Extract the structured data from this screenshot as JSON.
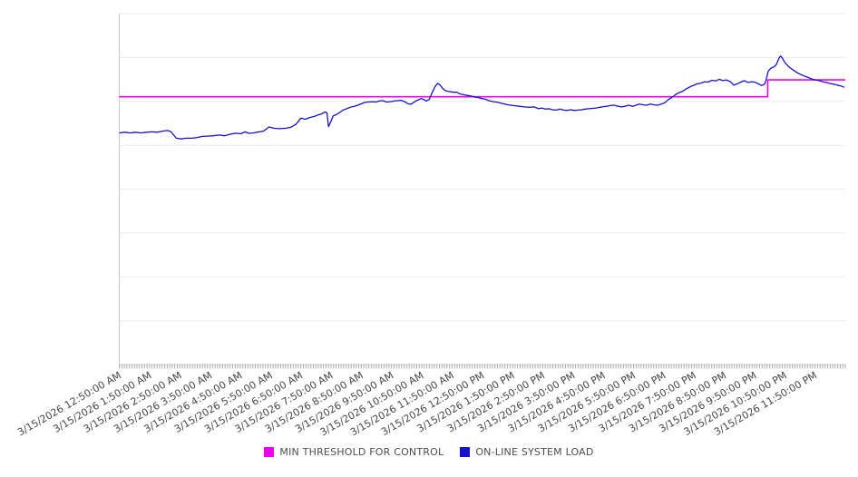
{
  "chart_data": {
    "type": "line",
    "title": "",
    "x_axis": {
      "kind": "time",
      "range_minutes": [
        0,
        1440
      ],
      "minor_tick_interval_minutes": 5,
      "label_interval_minutes": 60,
      "tick_labels": [
        "3/15/2026 12:50:00 AM",
        "3/15/2026 1:50:00 AM",
        "3/15/2026 2:50:00 AM",
        "3/15/2026 3:50:00 AM",
        "3/15/2026 4:50:00 AM",
        "3/15/2026 5:50:00 AM",
        "3/15/2026 6:50:00 AM",
        "3/15/2026 7:50:00 AM",
        "3/15/2026 8:50:00 AM",
        "3/15/2026 9:50:00 AM",
        "3/15/2026 10:50:00 AM",
        "3/15/2026 11:50:00 AM",
        "3/15/2026 12:50:00 PM",
        "3/15/2026 1:50:00 PM",
        "3/15/2026 2:50:00 PM",
        "3/15/2026 3:50:00 PM",
        "3/15/2026 4:50:00 PM",
        "3/15/2026 5:50:00 PM",
        "3/15/2026 6:50:00 PM",
        "3/15/2026 7:50:00 PM",
        "3/15/2026 8:50:00 PM",
        "3/15/2026 9:50:00 PM",
        "3/15/2026 10:50:00 PM",
        "3/15/2026 11:50:00 PM"
      ]
    },
    "y_axis": {
      "tick_labels": [],
      "note": "no visible y-axis labels; values are relative load units 0-100 estimated from gridlines",
      "range": [
        0,
        100
      ],
      "gridline_count": 9,
      "grid_on": true
    },
    "legend_position": "bottom",
    "series": [
      {
        "name": "MIN THRESHOLD FOR CONTROL",
        "color": "#ee00ee",
        "shape": "step",
        "points": [
          [
            0,
            76.3
          ],
          [
            1286,
            76.3
          ],
          [
            1286,
            81.1
          ],
          [
            1440,
            81.1
          ]
        ]
      },
      {
        "name": "ON-LINE SYSTEM LOAD",
        "color": "#1414cc",
        "shape": "line",
        "points": [
          [
            0,
            66.0
          ],
          [
            11,
            66.2
          ],
          [
            22,
            66.0
          ],
          [
            32,
            66.2
          ],
          [
            43,
            66.0
          ],
          [
            54,
            66.2
          ],
          [
            65,
            66.3
          ],
          [
            76,
            66.2
          ],
          [
            86,
            66.5
          ],
          [
            95,
            66.7
          ],
          [
            102,
            66.4
          ],
          [
            108,
            65.4
          ],
          [
            113,
            64.5
          ],
          [
            122,
            64.3
          ],
          [
            133,
            64.5
          ],
          [
            144,
            64.5
          ],
          [
            155,
            64.7
          ],
          [
            165,
            65.0
          ],
          [
            176,
            65.1
          ],
          [
            187,
            65.2
          ],
          [
            198,
            65.4
          ],
          [
            209,
            65.2
          ],
          [
            219,
            65.6
          ],
          [
            230,
            65.9
          ],
          [
            241,
            65.8
          ],
          [
            250,
            66.3
          ],
          [
            257,
            65.9
          ],
          [
            266,
            66.0
          ],
          [
            273,
            66.2
          ],
          [
            286,
            66.5
          ],
          [
            297,
            67.7
          ],
          [
            307,
            67.3
          ],
          [
            318,
            67.2
          ],
          [
            329,
            67.3
          ],
          [
            340,
            67.6
          ],
          [
            351,
            68.5
          ],
          [
            360,
            70.2
          ],
          [
            369,
            69.9
          ],
          [
            378,
            70.4
          ],
          [
            387,
            70.7
          ],
          [
            394,
            71.1
          ],
          [
            401,
            71.4
          ],
          [
            408,
            72.0
          ],
          [
            412,
            71.7
          ],
          [
            415,
            67.8
          ],
          [
            419,
            69.0
          ],
          [
            424,
            70.8
          ],
          [
            430,
            71.2
          ],
          [
            437,
            71.8
          ],
          [
            444,
            72.5
          ],
          [
            451,
            72.9
          ],
          [
            458,
            73.3
          ],
          [
            466,
            73.6
          ],
          [
            473,
            73.9
          ],
          [
            480,
            74.3
          ],
          [
            487,
            74.7
          ],
          [
            494,
            74.8
          ],
          [
            502,
            74.9
          ],
          [
            509,
            74.8
          ],
          [
            516,
            75.1
          ],
          [
            523,
            75.2
          ],
          [
            530,
            74.8
          ],
          [
            538,
            74.9
          ],
          [
            545,
            75.1
          ],
          [
            552,
            75.2
          ],
          [
            559,
            75.3
          ],
          [
            566,
            74.9
          ],
          [
            573,
            74.3
          ],
          [
            579,
            74.2
          ],
          [
            584,
            74.7
          ],
          [
            591,
            75.3
          ],
          [
            599,
            75.8
          ],
          [
            604,
            75.5
          ],
          [
            609,
            75.1
          ],
          [
            615,
            75.6
          ],
          [
            620,
            77.3
          ],
          [
            626,
            79.1
          ],
          [
            631,
            80.1
          ],
          [
            636,
            79.7
          ],
          [
            642,
            78.6
          ],
          [
            647,
            78.0
          ],
          [
            654,
            77.8
          ],
          [
            662,
            77.6
          ],
          [
            669,
            77.6
          ],
          [
            676,
            77.1
          ],
          [
            683,
            76.9
          ],
          [
            690,
            76.7
          ],
          [
            698,
            76.5
          ],
          [
            705,
            76.2
          ],
          [
            712,
            76.1
          ],
          [
            719,
            75.8
          ],
          [
            726,
            75.6
          ],
          [
            733,
            75.2
          ],
          [
            742,
            74.9
          ],
          [
            751,
            74.7
          ],
          [
            760,
            74.4
          ],
          [
            771,
            74.0
          ],
          [
            782,
            73.8
          ],
          [
            793,
            73.6
          ],
          [
            804,
            73.4
          ],
          [
            814,
            73.3
          ],
          [
            823,
            73.4
          ],
          [
            831,
            72.9
          ],
          [
            838,
            73.1
          ],
          [
            845,
            72.8
          ],
          [
            852,
            72.9
          ],
          [
            859,
            72.6
          ],
          [
            867,
            72.5
          ],
          [
            874,
            72.8
          ],
          [
            881,
            72.5
          ],
          [
            888,
            72.4
          ],
          [
            895,
            72.6
          ],
          [
            903,
            72.4
          ],
          [
            910,
            72.5
          ],
          [
            917,
            72.6
          ],
          [
            924,
            72.8
          ],
          [
            931,
            72.9
          ],
          [
            939,
            73.0
          ],
          [
            946,
            73.1
          ],
          [
            953,
            73.3
          ],
          [
            960,
            73.5
          ],
          [
            967,
            73.6
          ],
          [
            974,
            73.8
          ],
          [
            982,
            73.9
          ],
          [
            989,
            73.6
          ],
          [
            996,
            73.4
          ],
          [
            1003,
            73.6
          ],
          [
            1010,
            73.9
          ],
          [
            1018,
            73.6
          ],
          [
            1025,
            73.9
          ],
          [
            1032,
            74.2
          ],
          [
            1039,
            74.0
          ],
          [
            1046,
            73.9
          ],
          [
            1054,
            74.2
          ],
          [
            1061,
            74.0
          ],
          [
            1068,
            73.9
          ],
          [
            1075,
            74.2
          ],
          [
            1082,
            74.6
          ],
          [
            1089,
            75.5
          ],
          [
            1097,
            76.2
          ],
          [
            1104,
            77.0
          ],
          [
            1111,
            77.5
          ],
          [
            1118,
            77.9
          ],
          [
            1125,
            78.6
          ],
          [
            1133,
            79.2
          ],
          [
            1140,
            79.6
          ],
          [
            1147,
            80.0
          ],
          [
            1154,
            80.2
          ],
          [
            1161,
            80.6
          ],
          [
            1168,
            80.5
          ],
          [
            1176,
            81.0
          ],
          [
            1183,
            80.8
          ],
          [
            1190,
            81.3
          ],
          [
            1197,
            80.9
          ],
          [
            1204,
            81.1
          ],
          [
            1212,
            80.6
          ],
          [
            1219,
            79.6
          ],
          [
            1226,
            80.0
          ],
          [
            1233,
            80.5
          ],
          [
            1240,
            80.9
          ],
          [
            1247,
            80.4
          ],
          [
            1255,
            80.6
          ],
          [
            1262,
            80.4
          ],
          [
            1269,
            79.9
          ],
          [
            1274,
            79.5
          ],
          [
            1280,
            79.9
          ],
          [
            1283,
            81.1
          ],
          [
            1287,
            83.5
          ],
          [
            1292,
            84.4
          ],
          [
            1298,
            84.8
          ],
          [
            1303,
            85.4
          ],
          [
            1309,
            87.5
          ],
          [
            1312,
            87.9
          ],
          [
            1316,
            87.1
          ],
          [
            1321,
            85.9
          ],
          [
            1327,
            85.0
          ],
          [
            1332,
            84.4
          ],
          [
            1337,
            83.9
          ],
          [
            1344,
            83.2
          ],
          [
            1352,
            82.6
          ],
          [
            1359,
            82.2
          ],
          [
            1366,
            81.8
          ],
          [
            1373,
            81.4
          ],
          [
            1380,
            81.1
          ],
          [
            1388,
            80.9
          ],
          [
            1395,
            80.6
          ],
          [
            1402,
            80.4
          ],
          [
            1409,
            80.1
          ],
          [
            1417,
            79.9
          ],
          [
            1424,
            79.6
          ],
          [
            1431,
            79.4
          ],
          [
            1438,
            79.0
          ]
        ]
      }
    ]
  },
  "legend": {
    "items": [
      {
        "label": "MIN THRESHOLD FOR CONTROL"
      },
      {
        "label": "ON-LINE SYSTEM LOAD"
      }
    ]
  },
  "colors": {
    "gridline": "#ebebeb",
    "axis": "#c9c9c9",
    "tick": "#a9a9a9",
    "axis_label_text": "#474747",
    "legend_text": "#4d4d4d",
    "background": "#ffffff"
  }
}
